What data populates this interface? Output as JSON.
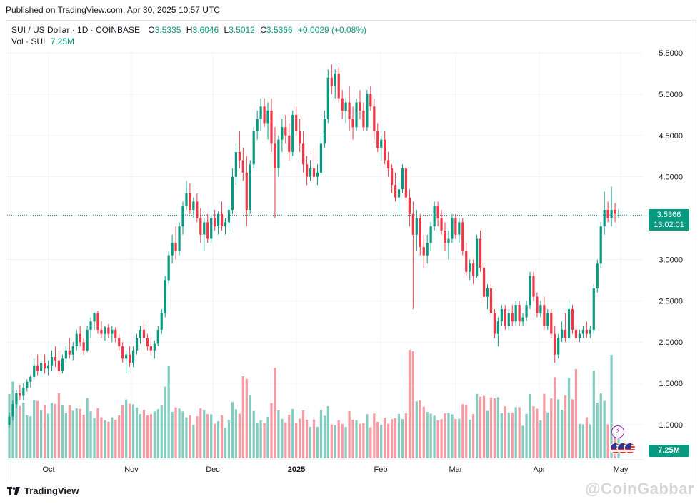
{
  "header": {
    "published": "Published on TradingView.com, Apr 30, 2025 10:57 UTC"
  },
  "legend": {
    "symbol": "SUI / US Dollar · 1D · COINBASE",
    "o_label": "O",
    "o": "3.5335",
    "h_label": "H",
    "h": "3.6046",
    "l_label": "L",
    "l": "3.5012",
    "c_label": "C",
    "c": "3.5366",
    "change": "+0.0029 (+0.08%)",
    "vol_label": "Vol · SUI",
    "vol": "7.25M"
  },
  "price_tag": {
    "price": "3.5366",
    "countdown": "13:02:01"
  },
  "vol_tag": "7.25M",
  "footer": {
    "brand": "TradingView",
    "watermark": "@CoinGabbar"
  },
  "colors": {
    "up": "#089981",
    "down": "#f23645",
    "grid": "#f0f3fa",
    "text": "#131722"
  },
  "chart_data": {
    "type": "candlestick",
    "y_ticks": [
      "5.5000",
      "5.0000",
      "4.5000",
      "4.0000",
      "3.5000",
      "3.0000",
      "2.5000",
      "2.0000",
      "1.5000",
      "1.0000"
    ],
    "x_ticks": [
      "Oct",
      "Nov",
      "Dec",
      "2025",
      "Feb",
      "Mar",
      "Apr",
      "May"
    ],
    "ylim": [
      0.6,
      5.8
    ],
    "last_price": 3.5366,
    "grid": true,
    "candles_ohlc_daily": [
      [
        1.0,
        1.15,
        0.97,
        1.1
      ],
      [
        1.1,
        1.3,
        1.05,
        1.25
      ],
      [
        1.25,
        1.42,
        1.2,
        1.38
      ],
      [
        1.38,
        1.48,
        1.3,
        1.35
      ],
      [
        1.35,
        1.5,
        1.3,
        1.45
      ],
      [
        1.45,
        1.55,
        1.4,
        1.52
      ],
      [
        1.52,
        1.6,
        1.45,
        1.58
      ],
      [
        1.58,
        1.8,
        1.55,
        1.72
      ],
      [
        1.72,
        1.85,
        1.6,
        1.65
      ],
      [
        1.65,
        1.78,
        1.58,
        1.75
      ],
      [
        1.75,
        1.85,
        1.62,
        1.68
      ],
      [
        1.68,
        1.78,
        1.6,
        1.72
      ],
      [
        1.72,
        1.9,
        1.65,
        1.82
      ],
      [
        1.82,
        1.95,
        1.7,
        1.78
      ],
      [
        1.78,
        1.9,
        1.6,
        1.65
      ],
      [
        1.65,
        1.85,
        1.62,
        1.8
      ],
      [
        1.8,
        1.95,
        1.75,
        1.9
      ],
      [
        1.9,
        2.05,
        1.8,
        1.85
      ],
      [
        1.85,
        2.0,
        1.78,
        1.95
      ],
      [
        1.95,
        2.15,
        1.9,
        2.1
      ],
      [
        2.1,
        2.2,
        1.95,
        2.0
      ],
      [
        2.0,
        2.05,
        1.85,
        1.9
      ],
      [
        1.9,
        2.2,
        1.88,
        2.15
      ],
      [
        2.15,
        2.3,
        2.05,
        2.25
      ],
      [
        2.25,
        2.36,
        2.15,
        2.35
      ],
      [
        2.35,
        2.38,
        2.1,
        2.15
      ],
      [
        2.15,
        2.25,
        2.05,
        2.1
      ],
      [
        2.1,
        2.2,
        2.02,
        2.18
      ],
      [
        2.18,
        2.22,
        2.05,
        2.1
      ],
      [
        2.1,
        2.2,
        2.0,
        2.15
      ],
      [
        2.15,
        2.18,
        2.0,
        2.05
      ],
      [
        2.05,
        2.1,
        1.9,
        1.95
      ],
      [
        1.95,
        2.0,
        1.75,
        1.8
      ],
      [
        1.8,
        1.9,
        1.62,
        1.85
      ],
      [
        1.85,
        1.95,
        1.7,
        1.75
      ],
      [
        1.75,
        1.95,
        1.7,
        1.9
      ],
      [
        1.9,
        2.1,
        1.85,
        2.05
      ],
      [
        2.05,
        2.2,
        1.98,
        2.15
      ],
      [
        2.15,
        2.25,
        2.0,
        2.05
      ],
      [
        2.05,
        2.1,
        1.9,
        1.95
      ],
      [
        1.95,
        2.05,
        1.85,
        1.9
      ],
      [
        1.9,
        2.02,
        1.8,
        1.98
      ],
      [
        1.98,
        2.2,
        1.95,
        2.15
      ],
      [
        2.15,
        2.4,
        2.1,
        2.35
      ],
      [
        2.35,
        2.8,
        2.3,
        2.75
      ],
      [
        2.75,
        3.1,
        2.7,
        3.05
      ],
      [
        3.05,
        3.3,
        2.95,
        3.2
      ],
      [
        3.2,
        3.4,
        3.0,
        3.1
      ],
      [
        3.1,
        3.45,
        3.05,
        3.4
      ],
      [
        3.4,
        3.7,
        3.3,
        3.65
      ],
      [
        3.65,
        3.95,
        3.6,
        3.8
      ],
      [
        3.8,
        3.92,
        3.55,
        3.6
      ],
      [
        3.6,
        3.75,
        3.5,
        3.7
      ],
      [
        3.7,
        3.8,
        3.45,
        3.5
      ],
      [
        3.5,
        3.62,
        3.2,
        3.3
      ],
      [
        3.3,
        3.5,
        3.1,
        3.45
      ],
      [
        3.45,
        3.55,
        3.2,
        3.25
      ],
      [
        3.25,
        3.55,
        3.2,
        3.5
      ],
      [
        3.5,
        3.6,
        3.35,
        3.4
      ],
      [
        3.4,
        3.58,
        3.3,
        3.55
      ],
      [
        3.55,
        3.7,
        3.35,
        3.4
      ],
      [
        3.4,
        3.5,
        3.3,
        3.45
      ],
      [
        3.45,
        3.65,
        3.35,
        3.6
      ],
      [
        3.6,
        4.1,
        3.55,
        4.0
      ],
      [
        4.0,
        4.4,
        3.9,
        4.3
      ],
      [
        4.3,
        4.55,
        4.1,
        4.2
      ],
      [
        4.2,
        4.35,
        3.95,
        4.05
      ],
      [
        4.05,
        4.25,
        3.4,
        3.6
      ],
      [
        3.6,
        4.2,
        3.55,
        4.15
      ],
      [
        4.15,
        4.6,
        4.1,
        4.55
      ],
      [
        4.55,
        4.8,
        4.45,
        4.7
      ],
      [
        4.7,
        4.95,
        4.55,
        4.85
      ],
      [
        4.85,
        4.95,
        4.6,
        4.65
      ],
      [
        4.65,
        4.9,
        4.45,
        4.8
      ],
      [
        4.8,
        4.95,
        4.3,
        4.4
      ],
      [
        4.4,
        4.6,
        3.5,
        4.1
      ],
      [
        4.1,
        4.5,
        4.0,
        4.45
      ],
      [
        4.45,
        4.7,
        4.3,
        4.6
      ],
      [
        4.6,
        4.75,
        4.4,
        4.5
      ],
      [
        4.5,
        4.65,
        4.2,
        4.3
      ],
      [
        4.3,
        4.8,
        4.25,
        4.75
      ],
      [
        4.75,
        4.85,
        4.5,
        4.55
      ],
      [
        4.55,
        4.7,
        4.3,
        4.4
      ],
      [
        4.4,
        4.55,
        4.05,
        4.15
      ],
      [
        4.15,
        4.25,
        3.9,
        4.0
      ],
      [
        4.0,
        4.2,
        3.95,
        4.1
      ],
      [
        4.1,
        4.3,
        3.95,
        4.0
      ],
      [
        4.0,
        4.15,
        3.9,
        4.05
      ],
      [
        4.05,
        4.5,
        4.0,
        4.4
      ],
      [
        4.4,
        4.8,
        4.35,
        4.7
      ],
      [
        4.7,
        5.3,
        4.65,
        5.2
      ],
      [
        5.2,
        5.36,
        5.0,
        5.1
      ],
      [
        5.1,
        5.3,
        4.95,
        5.25
      ],
      [
        5.25,
        5.33,
        4.9,
        4.95
      ],
      [
        4.95,
        5.05,
        4.7,
        4.8
      ],
      [
        4.8,
        4.95,
        4.65,
        4.9
      ],
      [
        4.9,
        5.1,
        4.55,
        4.7
      ],
      [
        4.7,
        4.85,
        4.45,
        4.6
      ],
      [
        4.6,
        4.95,
        4.55,
        4.9
      ],
      [
        4.9,
        5.05,
        4.7,
        4.8
      ],
      [
        4.8,
        4.9,
        4.55,
        4.6
      ],
      [
        4.6,
        5.05,
        4.55,
        5.0
      ],
      [
        5.0,
        5.1,
        4.8,
        4.85
      ],
      [
        4.85,
        4.95,
        4.45,
        4.55
      ],
      [
        4.55,
        4.65,
        4.3,
        4.35
      ],
      [
        4.35,
        4.5,
        4.2,
        4.45
      ],
      [
        4.45,
        4.55,
        4.15,
        4.2
      ],
      [
        4.2,
        4.3,
        4.0,
        4.1
      ],
      [
        4.1,
        4.15,
        3.8,
        3.9
      ],
      [
        3.9,
        4.05,
        3.7,
        3.75
      ],
      [
        3.75,
        3.95,
        3.55,
        3.85
      ],
      [
        3.85,
        4.15,
        3.8,
        4.1
      ],
      [
        4.1,
        4.12,
        3.7,
        3.75
      ],
      [
        3.75,
        3.85,
        3.4,
        3.55
      ],
      [
        3.55,
        3.7,
        2.4,
        3.3
      ],
      [
        3.3,
        3.6,
        3.1,
        3.5
      ],
      [
        3.5,
        3.55,
        3.05,
        3.15
      ],
      [
        3.15,
        3.3,
        2.9,
        3.05
      ],
      [
        3.05,
        3.3,
        2.95,
        3.2
      ],
      [
        3.2,
        3.45,
        3.1,
        3.4
      ],
      [
        3.4,
        3.7,
        3.35,
        3.65
      ],
      [
        3.65,
        3.7,
        3.4,
        3.5
      ],
      [
        3.5,
        3.6,
        3.3,
        3.35
      ],
      [
        3.35,
        3.45,
        3.1,
        3.2
      ],
      [
        3.2,
        3.35,
        3.0,
        3.25
      ],
      [
        3.25,
        3.55,
        3.2,
        3.5
      ],
      [
        3.5,
        3.55,
        3.25,
        3.3
      ],
      [
        3.3,
        3.5,
        3.2,
        3.45
      ],
      [
        3.45,
        3.5,
        3.05,
        3.1
      ],
      [
        3.1,
        3.2,
        2.8,
        2.85
      ],
      [
        2.85,
        3.0,
        2.75,
        2.95
      ],
      [
        2.95,
        3.0,
        2.7,
        2.8
      ],
      [
        2.8,
        3.3,
        2.78,
        3.25
      ],
      [
        3.25,
        3.35,
        2.85,
        2.9
      ],
      [
        2.9,
        2.95,
        2.5,
        2.55
      ],
      [
        2.55,
        2.7,
        2.4,
        2.65
      ],
      [
        2.65,
        2.7,
        2.3,
        2.35
      ],
      [
        2.35,
        2.4,
        2.05,
        2.1
      ],
      [
        2.1,
        2.3,
        1.95,
        2.25
      ],
      [
        2.25,
        2.45,
        2.2,
        2.4
      ],
      [
        2.4,
        2.45,
        2.15,
        2.2
      ],
      [
        2.2,
        2.4,
        2.15,
        2.35
      ],
      [
        2.35,
        2.45,
        2.2,
        2.25
      ],
      [
        2.25,
        2.5,
        2.2,
        2.45
      ],
      [
        2.45,
        2.5,
        2.2,
        2.25
      ],
      [
        2.25,
        2.35,
        2.2,
        2.3
      ],
      [
        2.3,
        2.5,
        2.25,
        2.45
      ],
      [
        2.45,
        2.85,
        2.4,
        2.8
      ],
      [
        2.8,
        2.85,
        2.5,
        2.55
      ],
      [
        2.55,
        2.6,
        2.3,
        2.35
      ],
      [
        2.35,
        2.5,
        2.3,
        2.45
      ],
      [
        2.45,
        2.55,
        2.15,
        2.2
      ],
      [
        2.2,
        2.4,
        2.15,
        2.35
      ],
      [
        2.35,
        2.4,
        2.05,
        2.1
      ],
      [
        2.1,
        2.2,
        1.75,
        1.85
      ],
      [
        1.85,
        2.1,
        1.8,
        2.05
      ],
      [
        2.05,
        2.25,
        2.0,
        2.15
      ],
      [
        2.15,
        2.35,
        2.0,
        2.05
      ],
      [
        2.05,
        2.5,
        2.0,
        2.4
      ],
      [
        2.4,
        2.45,
        2.1,
        2.15
      ],
      [
        2.15,
        2.2,
        2.0,
        2.05
      ],
      [
        2.05,
        2.15,
        2.0,
        2.1
      ],
      [
        2.1,
        2.2,
        2.05,
        2.15
      ],
      [
        2.15,
        2.25,
        2.05,
        2.1
      ],
      [
        2.1,
        2.2,
        2.05,
        2.15
      ],
      [
        2.15,
        2.7,
        2.1,
        2.65
      ],
      [
        2.65,
        3.0,
        2.6,
        2.95
      ],
      [
        2.95,
        3.45,
        2.9,
        3.4
      ],
      [
        3.4,
        3.82,
        3.3,
        3.6
      ],
      [
        3.6,
        3.7,
        3.45,
        3.5
      ],
      [
        3.5,
        3.88,
        3.4,
        3.6
      ],
      [
        3.6,
        3.68,
        3.45,
        3.55
      ],
      [
        3.5335,
        3.6046,
        3.5012,
        3.5366
      ]
    ],
    "volume_series": "daily volume bars (relative scale), colored by candle direction"
  }
}
